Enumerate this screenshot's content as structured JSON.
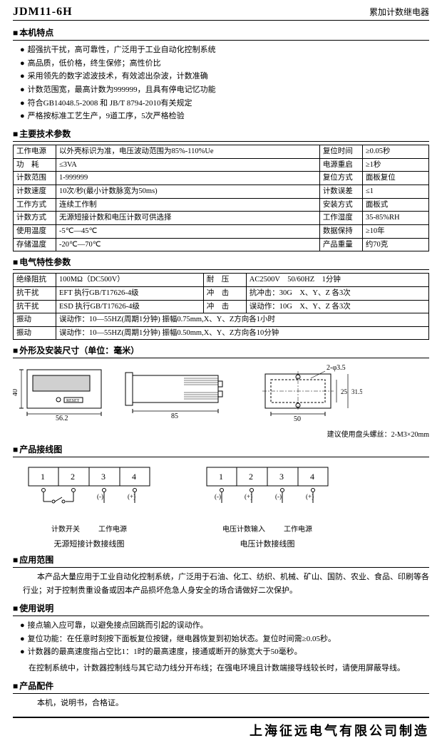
{
  "header": {
    "model": "JDM11-6H",
    "product_type": "累加计数继电器"
  },
  "features": {
    "title": "本机特点",
    "items": [
      "超强抗干扰，高可靠性，广泛用于工业自动化控制系统",
      "高品质，低价格，终生保修；高性价比",
      "采用领先的数字滤波技术，有效滤出杂波，计数准确",
      "计数范围宽，最高计数为999999，且具有停电记忆功能",
      "符合GB14048.5-2008 和 JB/T 8794-2010有关规定",
      "严格按标准工艺生产，9道工序，5次严格检验"
    ]
  },
  "tech_params": {
    "title": "主要技术参数",
    "rows": [
      [
        "工作电源",
        "以外壳标识为准，电压波动范围为85%-110%Ue",
        "复位时间",
        "≥0.05秒"
      ],
      [
        "功　耗",
        "≤3VA",
        "电源重启",
        "≥1秒"
      ],
      [
        "计数范围",
        "1-999999",
        "复位方式",
        "面板复位"
      ],
      [
        "计数速度",
        "10次/秒(最小计数脉宽为50ms)",
        "计数误差",
        "≤1"
      ],
      [
        "工作方式",
        "连续工作制",
        "安装方式",
        "面板式"
      ],
      [
        "计数方式",
        "无源短接计数和电压计数可供选择",
        "工作湿度",
        "35-85%RH"
      ],
      [
        "使用温度",
        "-5℃—45℃",
        "数据保持",
        "≥10年"
      ],
      [
        "存储温度",
        "-20℃—70℃",
        "产品重量",
        "约70克"
      ]
    ]
  },
  "elec_params": {
    "title": "电气特性参数",
    "rows": [
      [
        "绝缘阻抗",
        "100MΩ（DC500V）",
        "耐　压",
        "AC2500V　50/60HZ　1分钟"
      ],
      [
        "抗干扰",
        "EFT 执行GB/T17626-4级",
        "冲　击",
        "抗冲击：30G　X、Y、Z 各3次"
      ],
      [
        "抗干扰",
        "ESD 执行GB/T17626-4级",
        "冲　击",
        "误动作：10G　X、Y、Z 各3次"
      ],
      [
        "振动",
        "误动作：10—55HZ(周期1分钟) 振幅0.75mm,X、Y、Z方向各1小时",
        "",
        ""
      ],
      [
        "振动",
        "误动作：10—55HZ(周期1分钟) 振幅0.50mm,X、Y、Z方向各10分钟",
        "",
        ""
      ]
    ]
  },
  "dimensions": {
    "title": "外形及安装尺寸（单位：毫米）",
    "front": {
      "w": "56.2",
      "h": "40"
    },
    "side": {
      "depth": "85"
    },
    "mount": {
      "hole_note": "2-φ3.5",
      "w": "50",
      "h_in": "25",
      "h_out": "31.5"
    },
    "screw_note": "建议使用盘头螺丝：2-M3×20mm"
  },
  "wiring": {
    "title": "产品接线图",
    "terminals": [
      "1",
      "2",
      "3",
      "4"
    ],
    "left": {
      "labels": [
        "计数开关",
        "工作电源"
      ],
      "caption": "无源短接计数接线图",
      "polarity": "(-)　(+)"
    },
    "right": {
      "labels": [
        "电压计数输入",
        "工作电源"
      ],
      "caption": "电压计数接线图",
      "polarity_l": "(-)　(+)",
      "polarity_r": "(-)　(+)"
    }
  },
  "application": {
    "title": "应用范围",
    "text": "　　本产品大量应用于工业自动化控制系统，广泛用于石油、化工、纺织、机械、矿山、国防、农业、食品、印刷等各行业；对于控制贵重设备或因本产品损坏危急人身安全的场合请做好二次保护。"
  },
  "usage": {
    "title": "使用说明",
    "items": [
      "接点输入应可靠，以避免接点回跳而引起的误动作。",
      "复位功能：在任意时刻按下面板复位按键，继电器恢复到初始状态。复位时间需≥0.05秒。",
      "计数器的最高速度指占空比1：1时的最高速度，接通或断开的脉宽大于50毫秒。"
    ],
    "note": "在控制系统中，计数器控制线与其它动力线分开布线；在强电环境且计数端接导线较长时，请使用屏蔽导线。"
  },
  "accessories": {
    "title": "产品配件",
    "text": "　　本机，说明书，合格证。"
  },
  "footer": "上海征远电气有限公司制造"
}
